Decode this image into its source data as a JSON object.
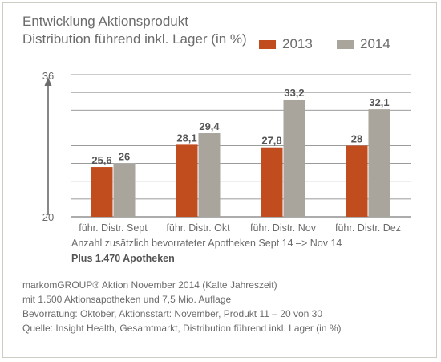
{
  "title": {
    "line1": "Entwicklung Aktionsprodukt",
    "line2": "Distribution führend inkl. Lager (in %)"
  },
  "chart_data": {
    "type": "bar",
    "categories": [
      "führ. Distr. Sept",
      "führ. Distr. Okt",
      "führ. Distr. Nov",
      "führ. Distr. Dez"
    ],
    "series": [
      {
        "name": "2013",
        "values": [
          25.6,
          28.1,
          27.8,
          28
        ],
        "labels": [
          "25,6",
          "28,1",
          "27,8",
          "28"
        ],
        "color": "#c14d1f"
      },
      {
        "name": "2014",
        "values": [
          26,
          29.4,
          33.2,
          32.1
        ],
        "labels": [
          "26",
          "29,4",
          "33,2",
          "32,1"
        ],
        "color": "#a9a59d"
      }
    ],
    "ylim": [
      20,
      36
    ],
    "ytick_labels": [
      "20",
      "36"
    ],
    "grid": true,
    "legend_position": "top-right"
  },
  "note": {
    "text": "Anzahl zusätzlich bevorrateter Apotheken Sept 14 –> Nov 14",
    "highlight": "Plus 1.470 Apotheken"
  },
  "footer": {
    "line1": "markomGROUP® Aktion November 2014 (Kalte Jahreszeit)",
    "line2": "mit 1.500 Aktionsapotheken und 7,5 Mio. Auflage",
    "line3": "Bevorratung: Oktober, Aktionsstart: November, Produkt 11 – 20 von 30",
    "line4": "Quelle: Insight Health, Gesamtmarkt, Distribution führend inkl. Lager (in %)"
  }
}
